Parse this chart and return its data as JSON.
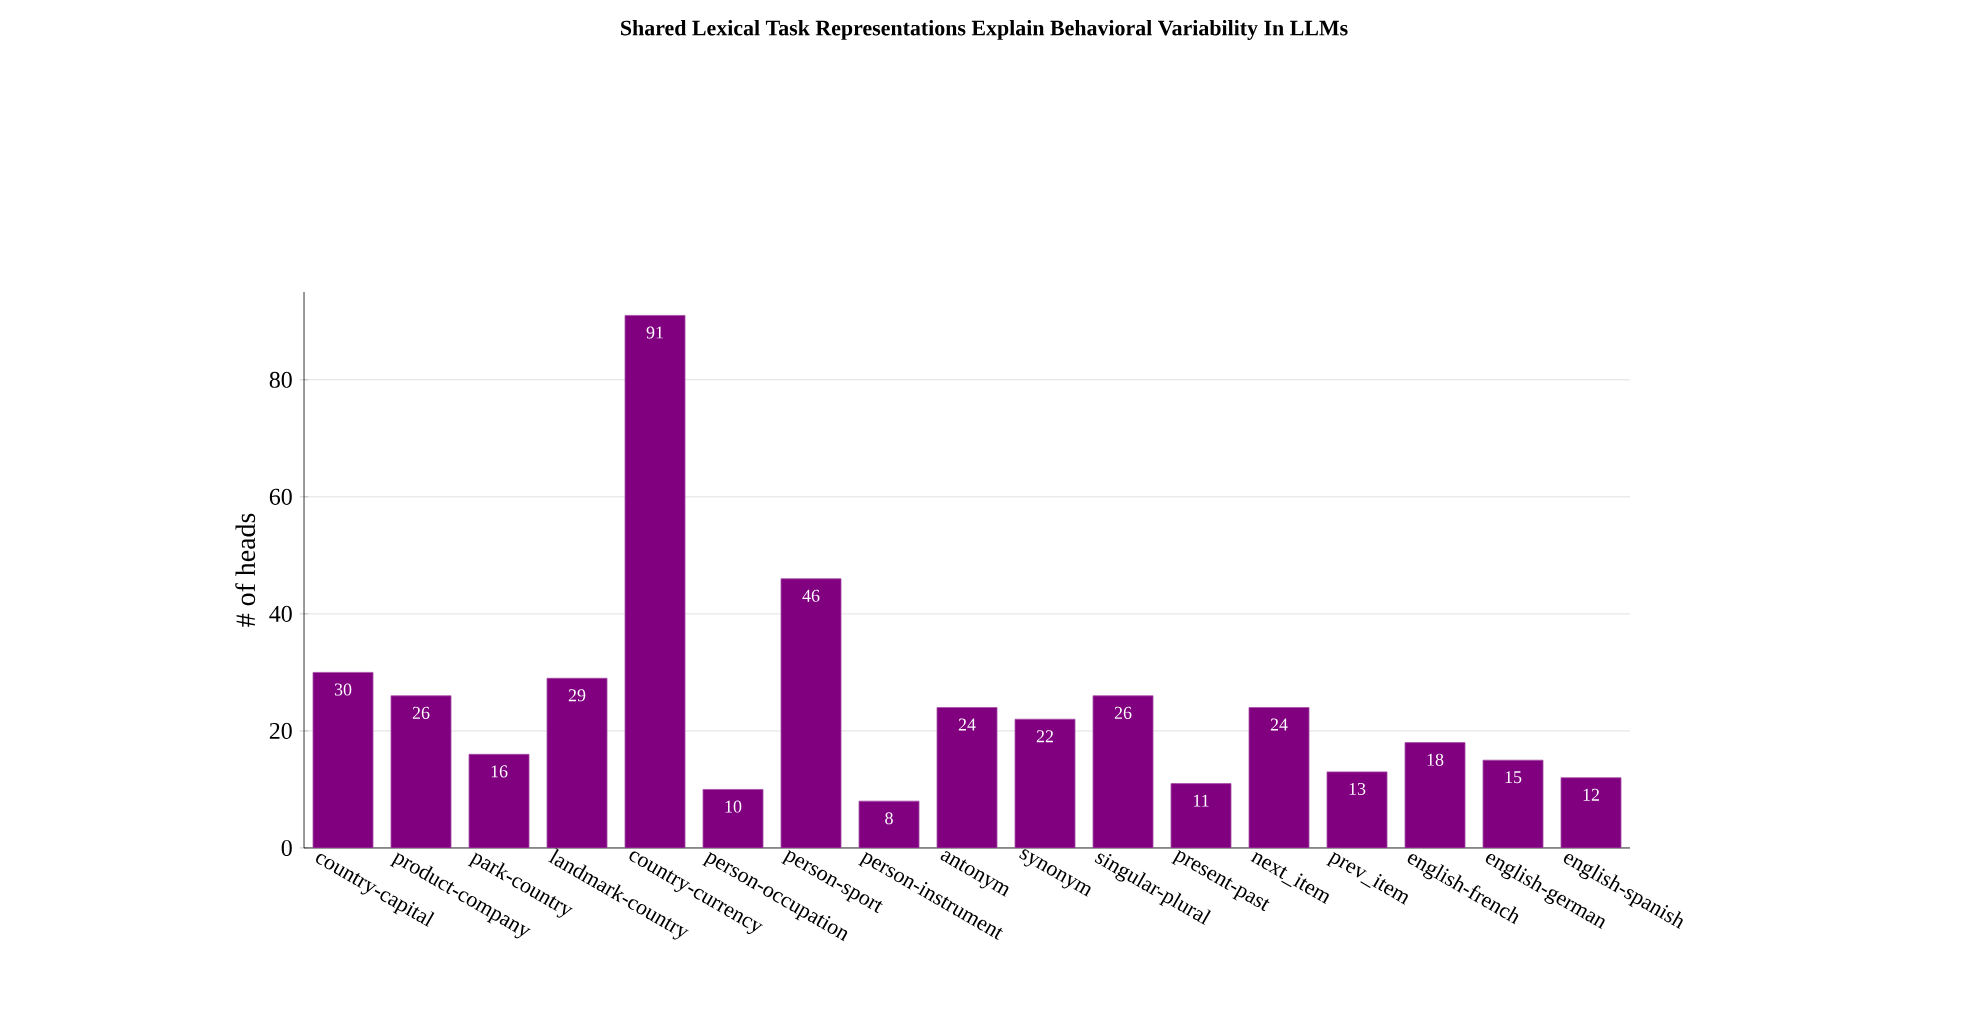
{
  "chart_data": {
    "type": "bar",
    "title": "Shared Lexical Task Representations Explain Behavioral Variability In LLMs",
    "ylabel": "# of heads",
    "categories": [
      "country-capital",
      "product-company",
      "park-country",
      "landmark-country",
      "country-currency",
      "person-occupation",
      "person-sport",
      "person-instrument",
      "antonym",
      "synonym",
      "singular-plural",
      "present-past",
      "next_item",
      "prev_item",
      "english-french",
      "english-german",
      "english-spanish"
    ],
    "values": [
      30,
      26,
      16,
      29,
      91,
      10,
      46,
      8,
      24,
      22,
      26,
      11,
      24,
      13,
      18,
      15,
      12
    ],
    "color": "#800080",
    "ylim": [
      0,
      95
    ],
    "yticks": [
      0,
      20,
      40,
      60,
      80
    ],
    "grid": "y",
    "data_labels": true
  }
}
